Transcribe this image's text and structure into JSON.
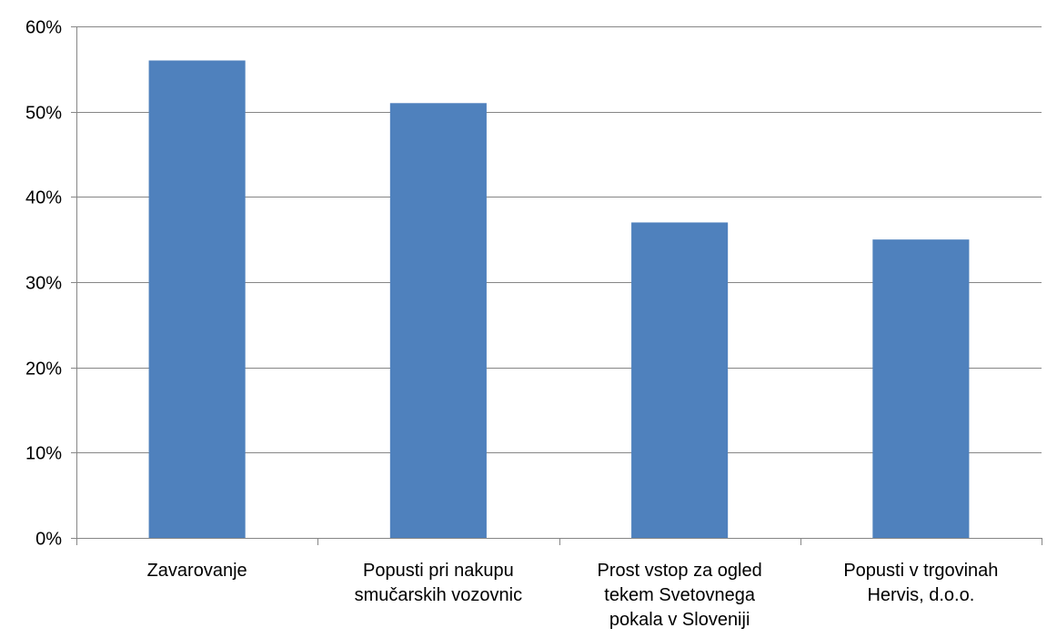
{
  "chart_data": {
    "type": "bar",
    "title": "",
    "xlabel": "",
    "ylabel": "",
    "categories": [
      [
        "Zavarovanje"
      ],
      [
        "Popusti pri nakupu",
        "smučarskih vozovnic"
      ],
      [
        "Prost vstop za ogled",
        "tekem Svetovnega",
        "pokala v Sloveniji"
      ],
      [
        "Popusti v trgovinah",
        "Hervis, d.o.o."
      ]
    ],
    "values": [
      56,
      51,
      37,
      35
    ],
    "value_unit": "%",
    "ylim": [
      0,
      60
    ],
    "yticks": [
      0,
      10,
      20,
      30,
      40,
      50,
      60
    ],
    "ytick_labels": [
      "0%",
      "10%",
      "20%",
      "30%",
      "40%",
      "50%",
      "60%"
    ],
    "grid": true,
    "legend": "none",
    "bar_color": "#4F81BD"
  }
}
